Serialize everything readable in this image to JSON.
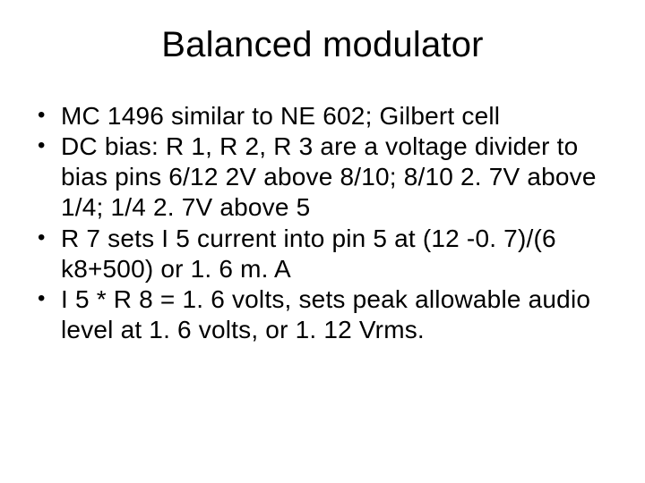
{
  "slide": {
    "title": "Balanced modulator",
    "title_fontsize": 40,
    "body_fontsize": 28,
    "background_color": "#ffffff",
    "text_color": "#000000",
    "font_family": "Arial",
    "bullets": [
      "MC 1496 similar to NE 602; Gilbert cell",
      "DC bias: R 1, R 2, R 3 are a voltage divider to bias pins 6/12 2V above 8/10; 8/10 2. 7V above 1/4; 1/4 2. 7V above 5",
      "R 7 sets I 5 current into pin 5 at (12 -0. 7)/(6 k8+500) or 1. 6 m. A",
      "I 5 * R 8 = 1. 6 volts, sets peak allowable audio level at 1. 6 volts, or 1. 12 Vrms."
    ]
  }
}
